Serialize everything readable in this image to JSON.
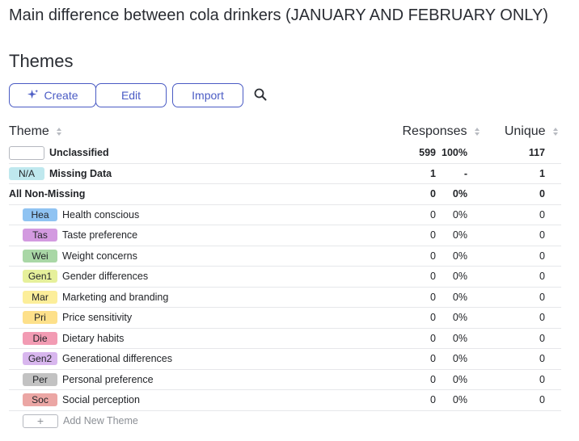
{
  "page": {
    "title": "Main difference between cola drinkers (JANUARY AND FEBRUARY ONLY)"
  },
  "themes_section": {
    "title": "Themes"
  },
  "toolbar": {
    "create_label": "Create",
    "edit_label": "Edit",
    "import_label": "Import",
    "search_icon": "search-icon",
    "create_icon": "sparkle-icon",
    "accent_color": "#4a5bc4"
  },
  "table": {
    "headers": {
      "theme": "Theme",
      "responses": "Responses",
      "unique": "Unique"
    },
    "summary_rows": [
      {
        "tag": "",
        "label": "Unclassified",
        "responses": "599",
        "percent": "100%",
        "unique": "117"
      },
      {
        "tag": "N/A",
        "tag_color": "#bfe8ee",
        "label": "Missing Data",
        "responses": "1",
        "percent": "-",
        "unique": "1"
      },
      {
        "label": "All Non-Missing",
        "responses": "0",
        "percent": "0%",
        "unique": "0"
      }
    ],
    "theme_rows": [
      {
        "tag": "Hea",
        "tag_color": "#8fc3f2",
        "label": "Health conscious",
        "responses": "0",
        "percent": "0%",
        "unique": "0"
      },
      {
        "tag": "Tas",
        "tag_color": "#d39ae0",
        "label": "Taste preference",
        "responses": "0",
        "percent": "0%",
        "unique": "0"
      },
      {
        "tag": "Wei",
        "tag_color": "#a9d7a6",
        "label": "Weight concerns",
        "responses": "0",
        "percent": "0%",
        "unique": "0"
      },
      {
        "tag": "Gen1",
        "tag_color": "#e6f09b",
        "label": "Gender differences",
        "responses": "0",
        "percent": "0%",
        "unique": "0"
      },
      {
        "tag": "Mar",
        "tag_color": "#fcee9a",
        "label": "Marketing and branding",
        "responses": "0",
        "percent": "0%",
        "unique": "0"
      },
      {
        "tag": "Pri",
        "tag_color": "#fde08a",
        "label": "Price sensitivity",
        "responses": "0",
        "percent": "0%",
        "unique": "0"
      },
      {
        "tag": "Die",
        "tag_color": "#f29bb3",
        "label": "Dietary habits",
        "responses": "0",
        "percent": "0%",
        "unique": "0"
      },
      {
        "tag": "Gen2",
        "tag_color": "#d8b6ee",
        "label": "Generational differences",
        "responses": "0",
        "percent": "0%",
        "unique": "0"
      },
      {
        "tag": "Per",
        "tag_color": "#c2c2c2",
        "label": "Personal preference",
        "responses": "0",
        "percent": "0%",
        "unique": "0"
      },
      {
        "tag": "Soc",
        "tag_color": "#eba6a4",
        "label": "Social perception",
        "responses": "0",
        "percent": "0%",
        "unique": "0"
      }
    ],
    "add_theme": {
      "icon": "+",
      "label": "Add New Theme"
    }
  }
}
